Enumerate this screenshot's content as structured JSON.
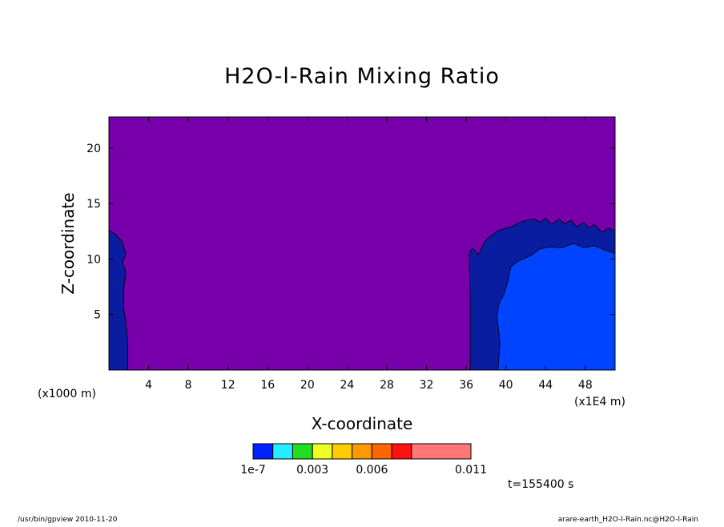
{
  "footer": {
    "left": "/usr/bin/gpview   2010-11-20",
    "right": "arare-earth_H2O-l-Rain.nc@H2O-l-Rain"
  },
  "chart_data": {
    "type": "heatmap",
    "title": "H2O-l-Rain Mixing Ratio",
    "xlabel": "X-coordinate",
    "ylabel": "Z-coordinate",
    "x_unit": "(x1E4 m)",
    "y_unit": "(x1000 m)",
    "xlim": [
      0,
      51
    ],
    "ylim": [
      0,
      22.8
    ],
    "x_ticks": [
      4,
      8,
      12,
      16,
      20,
      24,
      28,
      32,
      36,
      40,
      44,
      48
    ],
    "x_tick_labels": [
      "4",
      "8",
      "12",
      "16",
      "20",
      "24",
      "28",
      "32",
      "36",
      "40",
      "44",
      "48"
    ],
    "y_ticks": [
      5,
      10,
      15,
      20
    ],
    "y_tick_labels": [
      "5",
      "10",
      "15",
      "20"
    ],
    "background_color": "#7700aa",
    "grid": false,
    "colorbar": {
      "position": "bottom",
      "colors": [
        "#0022ff",
        "#22eeff",
        "#22dd22",
        "#eeff22",
        "#ffcc00",
        "#ff9900",
        "#ff6600",
        "#ff1111",
        "#ff7777"
      ],
      "boundaries": [
        0,
        1,
        2,
        3,
        4,
        5,
        6,
        7,
        8,
        11
      ],
      "labels": [
        {
          "text": "1e-7",
          "at": 0
        },
        {
          "text": "0.003",
          "at": 3
        },
        {
          "text": "0.006",
          "at": 6
        },
        {
          "text": "0.011",
          "at": 11
        }
      ]
    },
    "regions": [
      {
        "level": "lowest_nonzero",
        "color": "#0a1ca0",
        "points": [
          [
            0,
            0
          ],
          [
            0,
            12.6
          ],
          [
            0.7,
            12.2
          ],
          [
            1.3,
            11.6
          ],
          [
            1.7,
            10.5
          ],
          [
            1.4,
            9.7
          ],
          [
            1.7,
            8.8
          ],
          [
            1.5,
            7.4
          ],
          [
            1.5,
            5.5
          ],
          [
            1.7,
            4.2
          ],
          [
            1.9,
            2.5
          ],
          [
            1.9,
            0
          ]
        ]
      },
      {
        "level": "lowest_nonzero",
        "color": "#0a1ca0",
        "points": [
          [
            36.4,
            0
          ],
          [
            36.4,
            6.5
          ],
          [
            36.3,
            10.5
          ],
          [
            36.6,
            11
          ],
          [
            37.2,
            10.4
          ],
          [
            37.9,
            11.6
          ],
          [
            38.5,
            12.1
          ],
          [
            39.3,
            12.6
          ],
          [
            40.5,
            12.9
          ],
          [
            41.4,
            13.3
          ],
          [
            42.1,
            13.5
          ],
          [
            42.9,
            13.6
          ],
          [
            43.5,
            13.3
          ],
          [
            44,
            13.7
          ],
          [
            44.6,
            13.1
          ],
          [
            45.3,
            13.6
          ],
          [
            45.9,
            13.2
          ],
          [
            46.6,
            13.5
          ],
          [
            47.1,
            12.9
          ],
          [
            47.8,
            13.3
          ],
          [
            48.4,
            12.8
          ],
          [
            48.9,
            13.1
          ],
          [
            49.7,
            12.4
          ],
          [
            50.3,
            12.8
          ],
          [
            51,
            12.5
          ],
          [
            51,
            0
          ]
        ]
      },
      {
        "level": "low",
        "color": "#0044ff",
        "points": [
          [
            39.2,
            0
          ],
          [
            39.4,
            2.5
          ],
          [
            39.1,
            4.8
          ],
          [
            39.3,
            6
          ],
          [
            39.8,
            6.8
          ],
          [
            40.2,
            8
          ],
          [
            40.5,
            9.3
          ],
          [
            41.2,
            9.8
          ],
          [
            42.5,
            10.3
          ],
          [
            43.4,
            10.9
          ],
          [
            44.5,
            11.1
          ],
          [
            45.6,
            11
          ],
          [
            46.8,
            11.4
          ],
          [
            47.9,
            11
          ],
          [
            48.9,
            11.2
          ],
          [
            50,
            10.8
          ],
          [
            51,
            10.5
          ],
          [
            51,
            0
          ]
        ]
      }
    ],
    "time_label": "t=155400 s"
  }
}
